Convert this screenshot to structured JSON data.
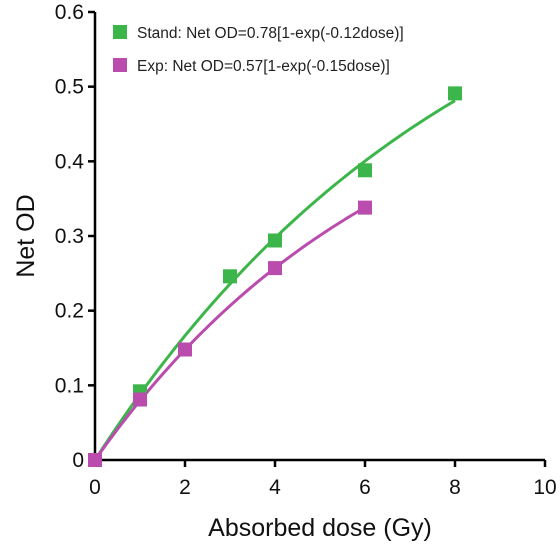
{
  "chart_data": {
    "type": "scatter",
    "xlabel": "Absorbed dose (Gy)",
    "ylabel": "Net OD",
    "xlim": [
      0,
      10
    ],
    "ylim": [
      0,
      0.6
    ],
    "x_ticks": [
      0,
      2,
      4,
      6,
      8,
      10
    ],
    "y_ticks": [
      0,
      0.1,
      0.2,
      0.3,
      0.4,
      0.5,
      0.6
    ],
    "x_tick_labels": [
      "0",
      "2",
      "4",
      "6",
      "8",
      "10"
    ],
    "y_tick_labels": [
      "0",
      "0.1",
      "0.2",
      "0.3",
      "0.4",
      "0.5",
      "0.6"
    ],
    "grid": false,
    "legend_position": "top-left",
    "series": [
      {
        "name": "Stand: Net OD=0.78[1-exp(-0.12dose)]",
        "color": "#3cb54a",
        "marker": "square",
        "x": [
          0,
          1,
          3,
          4,
          6,
          8
        ],
        "y": [
          0,
          0.092,
          0.246,
          0.294,
          0.388,
          0.491
        ],
        "fit": {
          "a": 0.78,
          "b": 0.12,
          "x_max": 8
        }
      },
      {
        "name": "Exp:  Net OD=0.57[1-exp(-0.15dose)]",
        "color": "#b94cad",
        "marker": "square",
        "x": [
          0,
          1,
          2,
          4,
          6
        ],
        "y": [
          0,
          0.081,
          0.148,
          0.257,
          0.338
        ],
        "fit": {
          "a": 0.57,
          "b": 0.15,
          "x_max": 6
        }
      }
    ]
  }
}
